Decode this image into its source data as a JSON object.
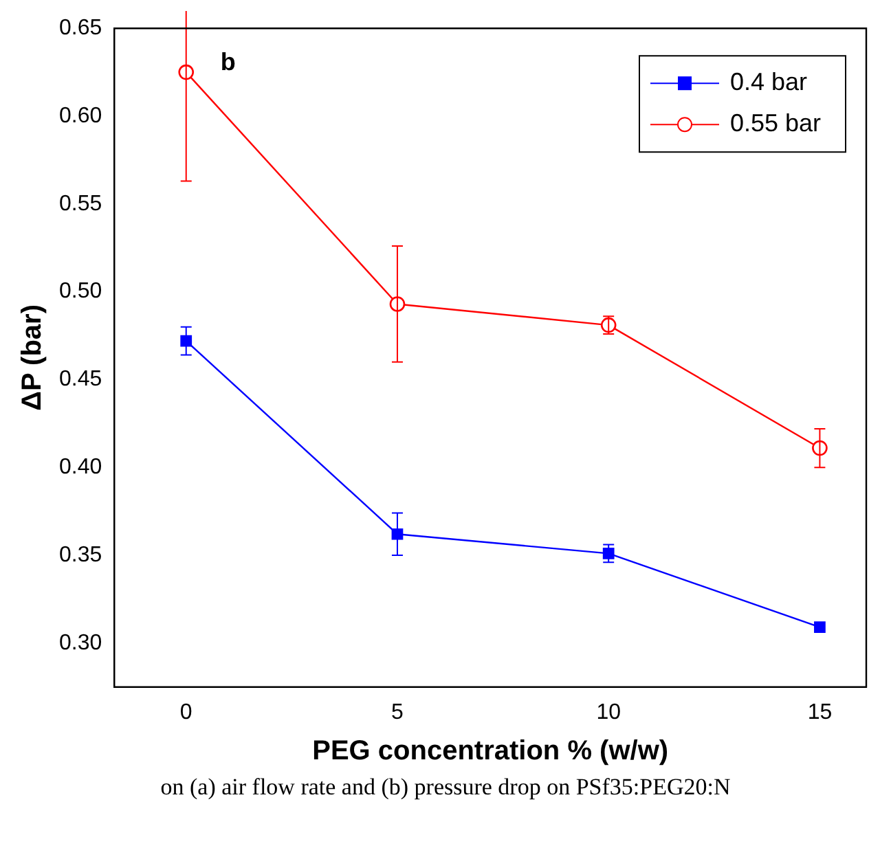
{
  "chart_data": {
    "type": "line",
    "xlabel": "PEG concentration % (w/w)",
    "ylabel": "ΔP (bar)",
    "x": [
      0,
      5,
      10,
      15
    ],
    "series": [
      {
        "name": "0.4 bar",
        "color": "#0000ff",
        "marker": "square",
        "values": [
          0.472,
          0.362,
          0.351,
          0.309
        ],
        "errors": [
          0.008,
          0.012,
          0.005,
          null
        ]
      },
      {
        "name": "0.55 bar",
        "color": "#ff0000",
        "marker": "circle",
        "values": [
          0.625,
          0.493,
          0.481,
          0.411
        ],
        "errors": [
          0.062,
          0.033,
          0.005,
          0.011
        ]
      }
    ],
    "xlim": [
      -1.7,
      16.1
    ],
    "xticks": [
      0,
      5,
      10,
      15
    ],
    "ylim": [
      0.275,
      0.65
    ],
    "yticks": [
      {
        "value": 0.3,
        "label": "0.30"
      },
      0.35,
      {
        "value": 0.4,
        "label": "0.40"
      },
      0.45,
      {
        "value": 0.5,
        "label": "0.50"
      },
      0.55,
      {
        "value": 0.6,
        "label": "0.60"
      },
      0.65
    ],
    "grid": false,
    "legend": "top right",
    "line_style": "solid",
    "annotations": [
      {
        "text": "b",
        "x": 0,
        "y": 0.63
      },
      "on (a) air flow rate and (b) pressure drop on PSf35:PEG20:N"
    ]
  }
}
